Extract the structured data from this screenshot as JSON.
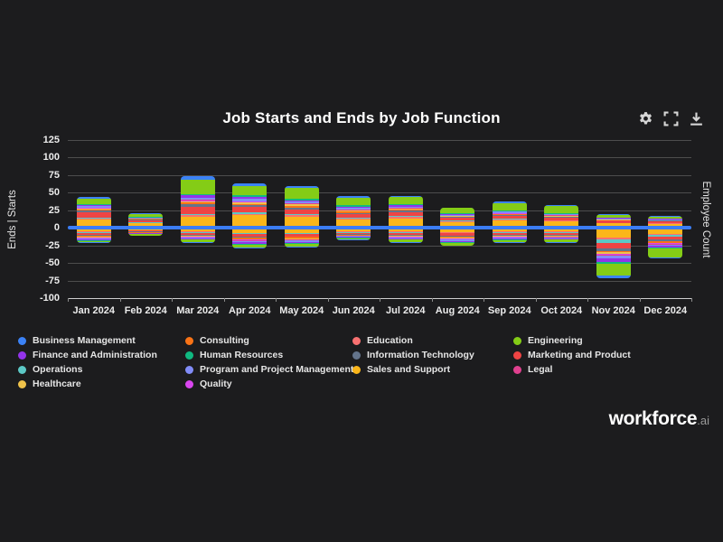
{
  "title": "Job Starts and Ends by Job Function",
  "toolbar": {
    "icons": [
      "settings-icon",
      "fullscreen-icon",
      "download-icon"
    ]
  },
  "axes": {
    "left_title": "Ends | Starts",
    "right_title": "Employee Count",
    "y_ticks": [
      125,
      100,
      75,
      50,
      25,
      0,
      -25,
      -50,
      -75,
      -100
    ],
    "ylim": [
      -100,
      125
    ]
  },
  "brand": {
    "name": "workforce",
    "suffix": ".ai"
  },
  "colors": {
    "background": "#1c1c1e",
    "grid": "#4d4d4d",
    "axis_line": "#cfcfcf",
    "zero_line": "#3b7df5",
    "text": "#ececec",
    "icon": "#d6d6d6"
  },
  "legend_order": [
    "Business Management",
    "Consulting",
    "Education",
    "Engineering",
    "Finance and Administration",
    "Human Resources",
    "Information Technology",
    "Marketing and Product",
    "Operations",
    "Program and Project Management",
    "Sales and Support",
    "Legal",
    "Healthcare",
    "Quality"
  ],
  "chart_data": {
    "type": "bar",
    "stacked": true,
    "title": "Job Starts and Ends by Job Function",
    "categories": [
      "Jan 2024",
      "Feb 2024",
      "Mar 2024",
      "Apr 2024",
      "May 2024",
      "Jun 2024",
      "Jul 2024",
      "Aug 2024",
      "Sep 2024",
      "Oct 2024",
      "Nov 2024",
      "Dec 2024"
    ],
    "ylim": [
      -100,
      125
    ],
    "grid": true,
    "legend_position": "bottom",
    "totals_starts": [
      44,
      21,
      74,
      63,
      60,
      45,
      45,
      29,
      37,
      33,
      19,
      17
    ],
    "totals_ends": [
      -22,
      -11,
      -21,
      -29,
      -28,
      -18,
      -21,
      -26,
      -22,
      -21,
      -72,
      -44
    ],
    "series": [
      {
        "name": "Sales and Support",
        "color": "#fbb61a",
        "starts": [
          12,
          6,
          16,
          18,
          16,
          12,
          13,
          8,
          11,
          9,
          6,
          5
        ],
        "ends": [
          -5,
          -3,
          -5,
          -7,
          -7,
          -5,
          -5,
          -6,
          -5,
          -5,
          -14,
          -9
        ]
      },
      {
        "name": "Education",
        "color": "#f87171",
        "starts": [
          1,
          1,
          2,
          2,
          2,
          1,
          2,
          1,
          1,
          1,
          0,
          1
        ],
        "ends": [
          -1,
          0,
          -1,
          -1,
          -1,
          -1,
          -1,
          -1,
          -1,
          -1,
          -2,
          -1
        ]
      },
      {
        "name": "Operations",
        "color": "#5cc8c6",
        "starts": [
          1,
          1,
          2,
          2,
          2,
          1,
          2,
          1,
          1,
          1,
          1,
          1
        ],
        "ends": [
          -1,
          0,
          -1,
          -1,
          -1,
          -1,
          -1,
          -1,
          -1,
          -1,
          -5,
          -2
        ]
      },
      {
        "name": "Marketing and Product",
        "color": "#ef4444",
        "starts": [
          8,
          3,
          10,
          8,
          6,
          5,
          5,
          4,
          4,
          3,
          3,
          2
        ],
        "ends": [
          -3,
          -2,
          -3,
          -4,
          -3,
          -2,
          -3,
          -3,
          -3,
          -3,
          -8,
          -5
        ]
      },
      {
        "name": "Information Technology",
        "color": "#64748b",
        "starts": [
          2,
          1,
          3,
          2,
          2,
          2,
          2,
          1,
          1,
          1,
          0,
          1
        ],
        "ends": [
          -1,
          -1,
          -1,
          -1,
          -1,
          -1,
          -1,
          -1,
          -1,
          -1,
          -4,
          -2
        ]
      },
      {
        "name": "Consulting",
        "color": "#f97316",
        "starts": [
          2,
          1,
          3,
          2,
          3,
          2,
          2,
          1,
          1,
          1,
          1,
          1
        ],
        "ends": [
          -2,
          -1,
          -1,
          -2,
          -2,
          -1,
          -1,
          -2,
          -1,
          -1,
          -2,
          -2
        ]
      },
      {
        "name": "Healthcare",
        "color": "#efc24a",
        "starts": [
          1,
          0,
          2,
          2,
          2,
          1,
          1,
          1,
          1,
          1,
          1,
          0
        ],
        "ends": [
          -1,
          0,
          -1,
          -1,
          -1,
          -1,
          -1,
          -1,
          -1,
          -1,
          -2,
          -1
        ]
      },
      {
        "name": "Quality",
        "color": "#d946ef",
        "starts": [
          1,
          0,
          1,
          1,
          1,
          1,
          0,
          0,
          1,
          0,
          0,
          0
        ],
        "ends": [
          -1,
          0,
          -1,
          -1,
          -1,
          0,
          -1,
          -1,
          -1,
          0,
          -2,
          -1
        ]
      },
      {
        "name": "Legal",
        "color": "#e0408f",
        "starts": [
          1,
          0,
          1,
          1,
          1,
          1,
          1,
          0,
          0,
          1,
          0,
          0
        ],
        "ends": [
          0,
          0,
          0,
          -1,
          -1,
          0,
          0,
          -1,
          0,
          -1,
          -1,
          -1
        ]
      },
      {
        "name": "Program and Project Management",
        "color": "#818cf8",
        "starts": [
          2,
          1,
          3,
          3,
          2,
          2,
          2,
          1,
          2,
          1,
          1,
          1
        ],
        "ends": [
          -1,
          -1,
          -1,
          -2,
          -2,
          -1,
          -1,
          -2,
          -1,
          -1,
          -3,
          -2
        ]
      },
      {
        "name": "Finance and Administration",
        "color": "#9333ea",
        "starts": [
          2,
          1,
          3,
          3,
          2,
          2,
          2,
          1,
          1,
          1,
          1,
          1
        ],
        "ends": [
          -2,
          -1,
          -1,
          -2,
          -2,
          -1,
          -1,
          -2,
          -2,
          -1,
          -6,
          -2
        ]
      },
      {
        "name": "Human Resources",
        "color": "#10b981",
        "starts": [
          1,
          1,
          2,
          2,
          2,
          2,
          2,
          2,
          1,
          1,
          0,
          0
        ],
        "ends": [
          -1,
          0,
          -1,
          -1,
          -1,
          -1,
          -1,
          -1,
          -1,
          -1,
          -2,
          -2
        ]
      },
      {
        "name": "Engineering",
        "color": "#84cc16",
        "starts": [
          8,
          4,
          20,
          14,
          16,
          11,
          10,
          7,
          10,
          10,
          4,
          3
        ],
        "ends": [
          -2,
          -2,
          -3,
          -4,
          -4,
          -2,
          -3,
          -3,
          -3,
          -3,
          -17,
          -12
        ]
      },
      {
        "name": "Business Management",
        "color": "#3b82f6",
        "starts": [
          2,
          1,
          6,
          3,
          3,
          2,
          1,
          1,
          2,
          2,
          1,
          1
        ],
        "ends": [
          -1,
          0,
          -1,
          -1,
          -1,
          -1,
          -1,
          -1,
          -1,
          -1,
          -4,
          -2
        ]
      }
    ]
  }
}
